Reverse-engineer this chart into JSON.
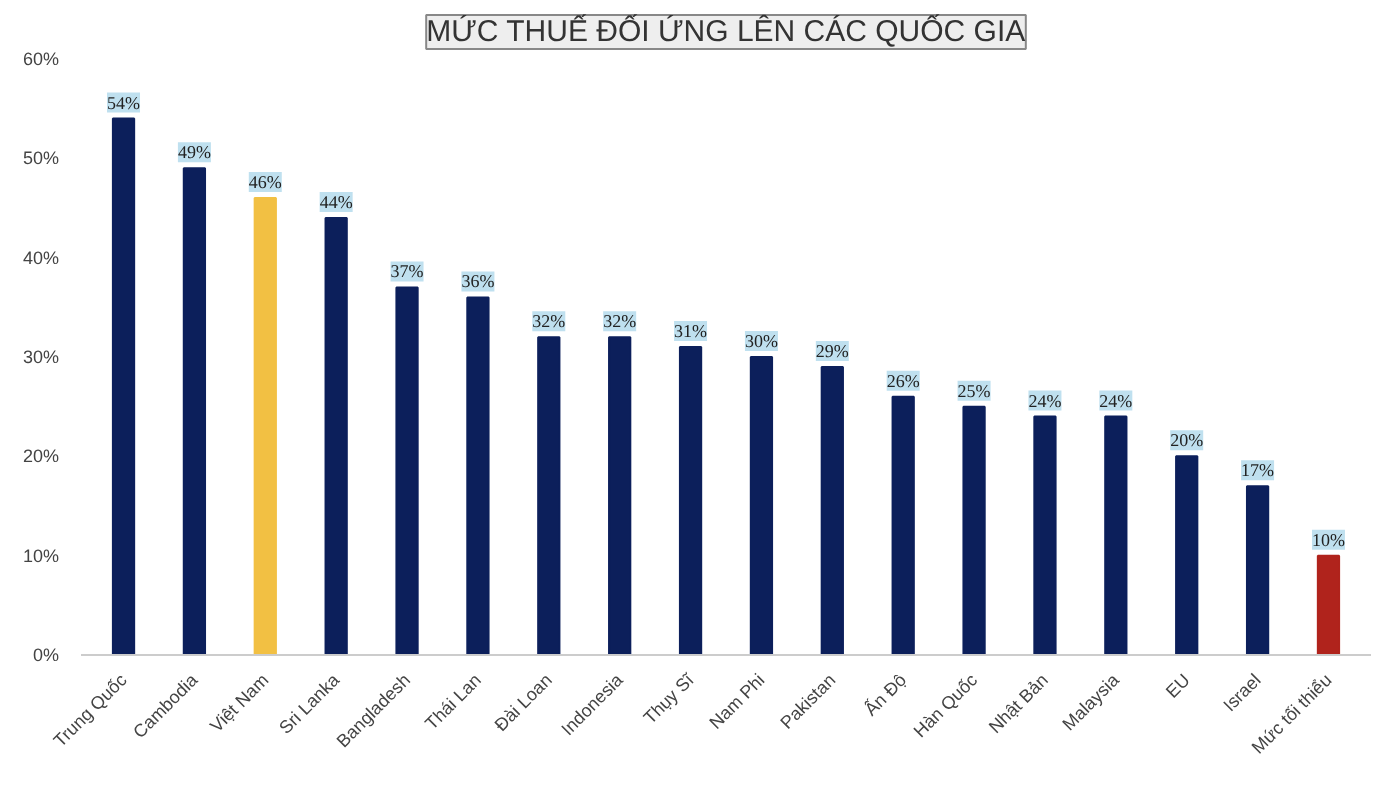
{
  "chart_data": {
    "type": "bar",
    "title": "MỨC THUẾ ĐỐI ỨNG LÊN CÁC QUỐC GIA",
    "categories": [
      "Trung Quốc",
      "Cambodia",
      "Việt Nam",
      "Sri Lanka",
      "Bangladesh",
      "Thái Lan",
      "Đài Loan",
      "Indonesia",
      "Thụy Sĩ",
      "Nam Phi",
      "Pakistan",
      "Ấn Độ",
      "Hàn Quốc",
      "Nhật Bản",
      "Malaysia",
      "EU",
      "Israel",
      "Mức tối thiểu"
    ],
    "values": [
      54,
      49,
      46,
      44,
      37,
      36,
      32,
      32,
      31,
      30,
      29,
      26,
      25,
      24,
      24,
      20,
      17,
      10
    ],
    "colors": [
      "#0c1f5b",
      "#0c1f5b",
      "#f2c043",
      "#0c1f5b",
      "#0c1f5b",
      "#0c1f5b",
      "#0c1f5b",
      "#0c1f5b",
      "#0c1f5b",
      "#0c1f5b",
      "#0c1f5b",
      "#0c1f5b",
      "#0c1f5b",
      "#0c1f5b",
      "#0c1f5b",
      "#0c1f5b",
      "#0c1f5b",
      "#b0231c"
    ],
    "value_labels": [
      "54%",
      "49%",
      "46%",
      "44%",
      "37%",
      "36%",
      "32%",
      "32%",
      "31%",
      "30%",
      "29%",
      "26%",
      "25%",
      "24%",
      "24%",
      "20%",
      "17%",
      "10%"
    ],
    "ylim": [
      0,
      60
    ],
    "yticks": [
      {
        "value": 0,
        "label": "0%"
      },
      {
        "value": 10,
        "label": "10%"
      },
      {
        "value": 20,
        "label": "20%"
      },
      {
        "value": 30,
        "label": "30%"
      },
      {
        "value": 40,
        "label": "40%"
      },
      {
        "value": 50,
        "label": "50%"
      },
      {
        "value": 60,
        "label": "60%"
      }
    ],
    "grid": false
  }
}
